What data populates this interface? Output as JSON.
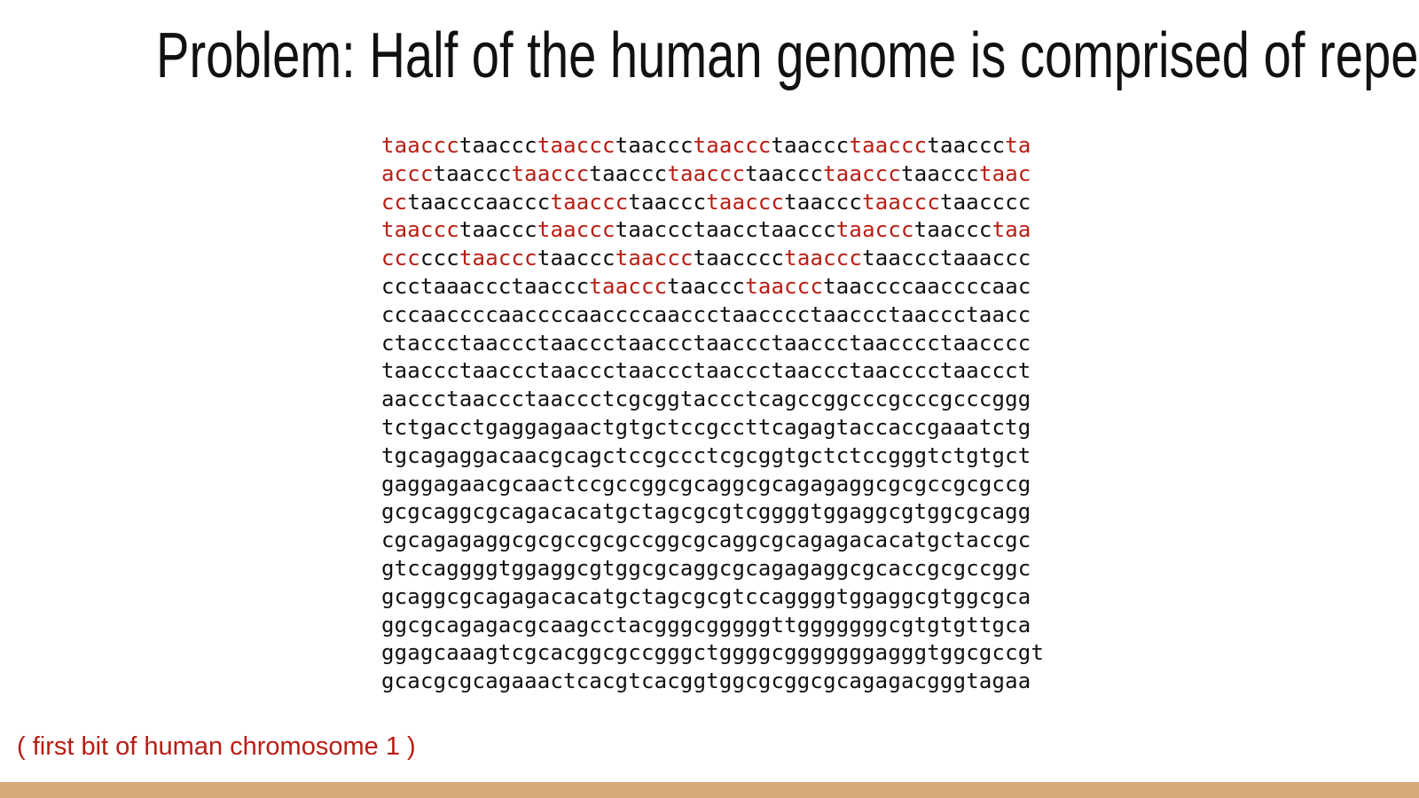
{
  "slide": {
    "title": "Problem: Half of the human genome is comprised of repeats",
    "caption": "( first bit of human chromosome 1 )",
    "colors": {
      "highlight": "#b81d13",
      "text": "#111111",
      "footer_bar": "#d4aa7a",
      "background": "#ffffff"
    }
  },
  "sequence_lines": [
    [
      {
        "text": "taaccc",
        "highlight": true
      },
      {
        "text": "taaccc",
        "highlight": false
      },
      {
        "text": "taaccc",
        "highlight": true
      },
      {
        "text": "taaccc",
        "highlight": false
      },
      {
        "text": "taaccc",
        "highlight": true
      },
      {
        "text": "taaccc",
        "highlight": false
      },
      {
        "text": "taaccc",
        "highlight": true
      },
      {
        "text": "taaccc",
        "highlight": false
      },
      {
        "text": "ta",
        "highlight": true
      }
    ],
    [
      {
        "text": "accc",
        "highlight": true
      },
      {
        "text": "taaccc",
        "highlight": false
      },
      {
        "text": "taaccc",
        "highlight": true
      },
      {
        "text": "taaccc",
        "highlight": false
      },
      {
        "text": "taaccc",
        "highlight": true
      },
      {
        "text": "taaccc",
        "highlight": false
      },
      {
        "text": "taaccc",
        "highlight": true
      },
      {
        "text": "taaccc",
        "highlight": false
      },
      {
        "text": "taac",
        "highlight": true
      }
    ],
    [
      {
        "text": "cc",
        "highlight": true
      },
      {
        "text": "taacccaaccc",
        "highlight": false
      },
      {
        "text": "taaccc",
        "highlight": true
      },
      {
        "text": "taaccc",
        "highlight": false
      },
      {
        "text": "taaccc",
        "highlight": true
      },
      {
        "text": "taaccc",
        "highlight": false
      },
      {
        "text": "taaccc",
        "highlight": true
      },
      {
        "text": "taacccc",
        "highlight": false
      }
    ],
    [
      {
        "text": "taaccc",
        "highlight": true
      },
      {
        "text": "taaccc",
        "highlight": false
      },
      {
        "text": "taaccc",
        "highlight": true
      },
      {
        "text": "taaccctaacctaaccc",
        "highlight": false
      },
      {
        "text": "taaccc",
        "highlight": true
      },
      {
        "text": "taaccc",
        "highlight": false
      },
      {
        "text": "taa",
        "highlight": true
      }
    ],
    [
      {
        "text": "ccc",
        "highlight": true
      },
      {
        "text": "ccc",
        "highlight": false
      },
      {
        "text": "taaccc",
        "highlight": true
      },
      {
        "text": "taaccc",
        "highlight": false
      },
      {
        "text": "taaccc",
        "highlight": true
      },
      {
        "text": "taacccc",
        "highlight": false
      },
      {
        "text": "taaccc",
        "highlight": true
      },
      {
        "text": "taaccctaaaccc",
        "highlight": false
      }
    ],
    [
      {
        "text": "ccctaaaccctaaccc",
        "highlight": false
      },
      {
        "text": "taaccc",
        "highlight": true
      },
      {
        "text": "taaccc",
        "highlight": false
      },
      {
        "text": "taaccc",
        "highlight": true
      },
      {
        "text": "taaccccaaccccaac",
        "highlight": false
      }
    ],
    [
      {
        "text": "cccaaccccaaccccaaccccaaccctaacccctaaccctaaccctaacc",
        "highlight": false
      }
    ],
    [
      {
        "text": "ctaccctaaccctaaccctaaccctaaccctaaccctaacccctaacccc",
        "highlight": false
      }
    ],
    [
      {
        "text": "taaccctaaccctaaccctaaccctaaccctaaccctaacccctaaccct",
        "highlight": false
      }
    ],
    [
      {
        "text": "aaccctaaccctaaccctcgcggtaccctcagccggcccgcccgcccggg",
        "highlight": false
      }
    ],
    [
      {
        "text": "tctgacctgaggagaactgtgctccgccttcagagtaccaccgaaatctg",
        "highlight": false
      }
    ],
    [
      {
        "text": "tgcagaggacaacgcagctccgccctcgcggtgctctccgggtctgtgct",
        "highlight": false
      }
    ],
    [
      {
        "text": "gaggagaacgcaactccgccggcgcaggcgcagagaggcgcgccgcgccg",
        "highlight": false
      }
    ],
    [
      {
        "text": "gcgcaggcgcagacacatgctagcgcgtcggggtggaggcgtggcgcagg",
        "highlight": false
      }
    ],
    [
      {
        "text": "cgcagagaggcgcgccgcgccggcgcaggcgcagagacacatgctaccgc",
        "highlight": false
      }
    ],
    [
      {
        "text": "gtccaggggtggaggcgtggcgcaggcgcagagaggcgcaccgcgccggc",
        "highlight": false
      }
    ],
    [
      {
        "text": "gcaggcgcagagacacatgctagcgcgtccaggggtggaggcgtggcgca",
        "highlight": false
      }
    ],
    [
      {
        "text": "ggcgcagagacgcaagcctacgggcgggggttgggggggcgtgtgttgca",
        "highlight": false
      }
    ],
    [
      {
        "text": "ggagcaaagtcgcacggcgccgggctggggcgggggggagggtggcgccgt",
        "highlight": false
      }
    ],
    [
      {
        "text": "gcacgcgcagaaactcacgtcacggtggcgcggcgcagagacgggtagaa",
        "highlight": false
      }
    ]
  ]
}
